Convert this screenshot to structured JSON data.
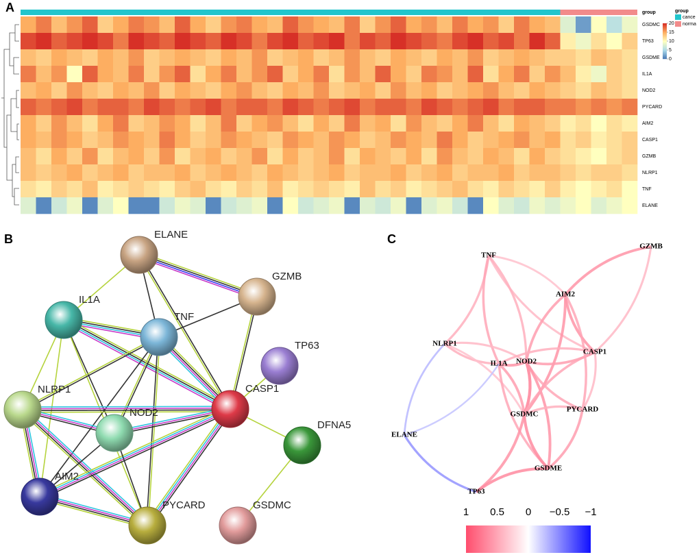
{
  "panel_labels": [
    "A",
    "B",
    "C"
  ],
  "chart_data": [
    {
      "type": "heatmap",
      "rows": [
        "GSDMC",
        "TP63",
        "GSDME",
        "IL1A",
        "NOD2",
        "PYCARD",
        "AIM2",
        "CASP1",
        "GZMB",
        "NLRP1",
        "TNF",
        "ELANE"
      ],
      "values": [
        [
          15,
          17,
          14,
          16,
          18,
          13,
          15,
          17,
          16,
          14,
          18,
          15,
          13,
          16,
          17,
          15,
          14,
          18,
          16,
          15,
          14,
          17,
          13,
          16,
          18,
          15,
          16,
          14,
          17,
          15,
          16,
          13,
          17,
          15,
          14,
          8,
          2,
          10,
          6,
          9
        ],
        [
          19,
          20,
          18,
          19,
          20,
          19,
          17,
          20,
          19,
          18,
          20,
          19,
          18,
          20,
          19,
          17,
          19,
          20,
          18,
          19,
          20,
          17,
          19,
          18,
          20,
          19,
          18,
          17,
          19,
          20,
          18,
          19,
          17,
          20,
          18,
          11,
          9,
          12,
          10,
          13
        ],
        [
          14,
          13,
          15,
          14,
          13,
          15,
          14,
          16,
          13,
          14,
          15,
          14,
          13,
          15,
          14,
          16,
          13,
          14,
          15,
          13,
          14,
          16,
          14,
          13,
          15,
          14,
          13,
          15,
          14,
          16,
          13,
          14,
          15,
          14,
          13,
          13,
          12,
          14,
          13,
          12
        ],
        [
          17,
          14,
          16,
          10,
          18,
          15,
          14,
          17,
          13,
          16,
          18,
          12,
          15,
          17,
          14,
          16,
          18,
          13,
          15,
          17,
          12,
          16,
          14,
          18,
          15,
          13,
          17,
          16,
          14,
          18,
          12,
          15,
          17,
          13,
          16,
          14,
          11,
          9,
          13,
          12
        ],
        [
          14,
          15,
          13,
          16,
          14,
          13,
          15,
          14,
          16,
          13,
          15,
          14,
          13,
          15,
          16,
          14,
          13,
          15,
          14,
          16,
          13,
          14,
          15,
          13,
          16,
          14,
          15,
          13,
          14,
          15,
          16,
          14,
          13,
          15,
          14,
          13,
          12,
          14,
          13,
          12
        ],
        [
          18,
          17,
          18,
          19,
          17,
          18,
          18,
          17,
          19,
          18,
          17,
          18,
          19,
          17,
          18,
          18,
          17,
          19,
          18,
          17,
          18,
          19,
          17,
          18,
          18,
          17,
          19,
          18,
          17,
          18,
          19,
          17,
          18,
          18,
          17,
          17,
          16,
          17,
          16,
          17
        ],
        [
          15,
          13,
          16,
          14,
          12,
          15,
          17,
          13,
          14,
          16,
          15,
          12,
          14,
          17,
          13,
          15,
          16,
          14,
          12,
          15,
          13,
          17,
          14,
          15,
          12,
          16,
          14,
          13,
          15,
          17,
          14,
          12,
          15,
          14,
          13,
          11,
          12,
          10,
          12,
          11
        ],
        [
          15,
          14,
          16,
          15,
          13,
          14,
          16,
          15,
          14,
          17,
          15,
          13,
          14,
          16,
          15,
          14,
          13,
          16,
          15,
          14,
          16,
          15,
          13,
          14,
          16,
          15,
          14,
          17,
          15,
          13,
          14,
          15,
          16,
          14,
          15,
          12,
          13,
          11,
          12,
          13
        ],
        [
          14,
          12,
          15,
          13,
          16,
          12,
          14,
          15,
          13,
          16,
          12,
          14,
          15,
          13,
          14,
          16,
          12,
          15,
          13,
          14,
          16,
          12,
          15,
          14,
          13,
          15,
          12,
          16,
          14,
          13,
          15,
          14,
          12,
          15,
          13,
          12,
          11,
          10,
          12,
          13
        ],
        [
          14,
          13,
          14,
          15,
          13,
          14,
          15,
          13,
          14,
          14,
          15,
          13,
          14,
          15,
          14,
          13,
          15,
          14,
          13,
          14,
          15,
          13,
          14,
          14,
          15,
          13,
          14,
          15,
          13,
          14,
          14,
          15,
          13,
          14,
          14,
          13,
          12,
          13,
          13,
          12
        ],
        [
          12,
          11,
          13,
          12,
          14,
          11,
          12,
          13,
          12,
          11,
          13,
          14,
          12,
          11,
          13,
          12,
          14,
          11,
          12,
          13,
          12,
          11,
          14,
          12,
          13,
          11,
          12,
          13,
          14,
          12,
          11,
          13,
          12,
          11,
          13,
          11,
          10,
          11,
          12,
          10
        ],
        [
          8,
          1,
          7,
          9,
          1,
          8,
          10,
          1,
          1,
          7,
          9,
          8,
          1,
          7,
          8,
          9,
          1,
          10,
          7,
          8,
          9,
          1,
          8,
          7,
          9,
          1,
          8,
          9,
          7,
          1,
          10,
          8,
          7,
          9,
          8,
          9,
          10,
          8,
          9,
          10
        ]
      ],
      "group_label": "group",
      "groups": [
        {
          "name": "cance",
          "color": "#22c5cc",
          "n": 35
        },
        {
          "name": "norma",
          "color": "#f28b8b",
          "n": 5
        }
      ],
      "clim": [
        0,
        20
      ],
      "cticks": [
        20,
        15,
        10,
        5,
        0
      ],
      "colors": [
        "#4575b4",
        "#abd9e9",
        "#ffffbf",
        "#fdae61",
        "#d73027"
      ]
    },
    {
      "type": "correlation-network",
      "nodes": [
        "TNF",
        "GZMB",
        "AIM2",
        "NLRP1",
        "CASP1",
        "IL1A",
        "NOD2",
        "PYCARD",
        "GSDMC",
        "ELANE",
        "GSDME",
        "TP63"
      ],
      "edge_values": [
        0.45,
        0.5,
        0.35,
        0.4,
        0.45,
        0.6,
        0.4,
        0.55,
        0.6,
        0.6,
        0.5,
        0.45,
        0.4,
        -0.3,
        0.35,
        0.6,
        0.55,
        0.5,
        0.45,
        0.55,
        0.7,
        0.5,
        0.6,
        0.5,
        0.4,
        0.45,
        0.55,
        0.65,
        0.6,
        0.65,
        -0.45,
        -0.25
      ],
      "clim": [
        -1,
        1
      ],
      "cticks": [
        1,
        0.5,
        0,
        {
          "value": -0.5,
          "label": "−0.5"
        },
        {
          "value": -1,
          "label": "−1"
        }
      ]
    }
  ],
  "string_network": {
    "nodes": [
      "ELANE",
      "GZMB",
      "IL1A",
      "TNF",
      "TP63",
      "NLRP1",
      "CASP1",
      "NOD2",
      "DFNA5",
      "AIM2",
      "PYCARD",
      "GSDMC"
    ]
  }
}
